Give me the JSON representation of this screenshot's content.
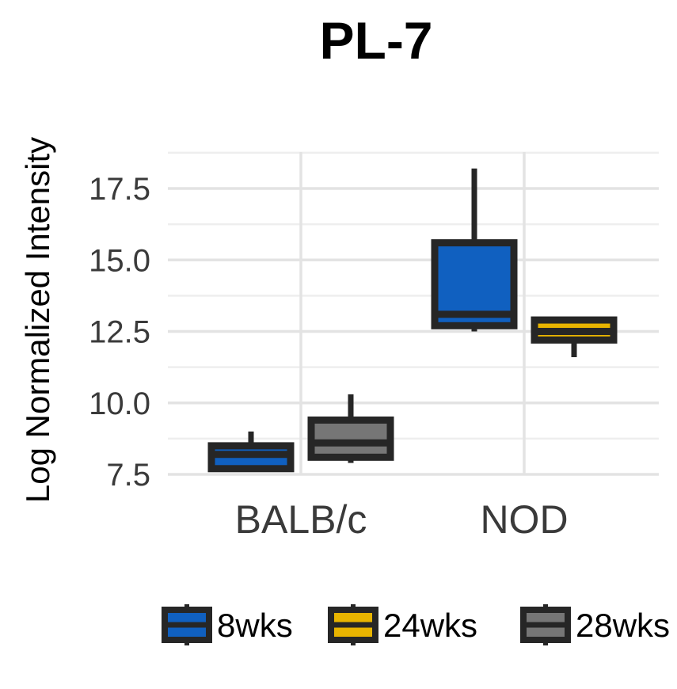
{
  "chart_data": {
    "type": "box",
    "title": "PL-7",
    "xlabel": "",
    "ylabel": "Log Normalized Intensity",
    "categories": [
      "BALB/c",
      "NOD"
    ],
    "y_ticks": [
      "7.5",
      "10.0",
      "12.5",
      "15.0",
      "17.5"
    ],
    "ylim": [
      7.5,
      18.5
    ],
    "grid": true,
    "legend_position": "bottom",
    "colors": {
      "8wks": "#1060c0",
      "24wks": "#e8b400",
      "28wks": "#767676",
      "outline": "#262626"
    },
    "series": [
      {
        "name": "8wks",
        "boxes": [
          {
            "category": "BALB/c",
            "min": 7.7,
            "q1": 7.7,
            "median": 8.2,
            "q3": 8.5,
            "max": 9.0
          },
          {
            "category": "NOD",
            "min": 12.5,
            "q1": 12.7,
            "median": 13.1,
            "q3": 15.6,
            "max": 18.2
          }
        ]
      },
      {
        "name": "24wks",
        "boxes": [
          {
            "category": "NOD",
            "min": 11.6,
            "q1": 12.2,
            "median": 12.5,
            "q3": 12.9,
            "max": 12.9
          }
        ]
      },
      {
        "name": "28wks",
        "boxes": [
          {
            "category": "BALB/c",
            "min": 7.9,
            "q1": 8.1,
            "median": 8.6,
            "q3": 9.4,
            "max": 10.3
          }
        ]
      }
    ]
  }
}
